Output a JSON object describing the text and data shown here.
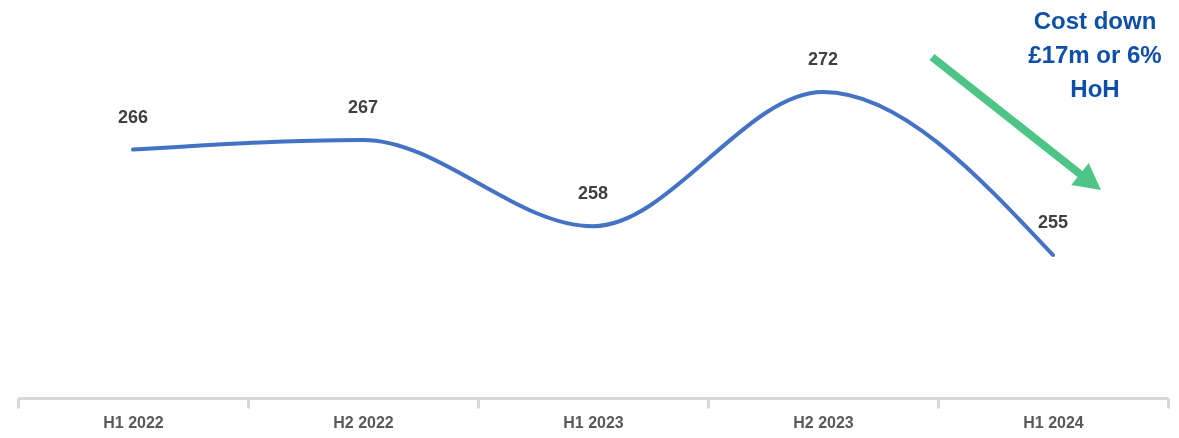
{
  "chart_data": {
    "type": "line",
    "categories": [
      "H1 2022",
      "H2 2022",
      "H1 2023",
      "H2 2023",
      "H1 2024"
    ],
    "series": [
      {
        "color": "#4472c4",
        "values": [
          266,
          267,
          258,
          272,
          255
        ]
      }
    ],
    "tick_labels": "x",
    "data_labels": true,
    "annotations": [
      "Cost down £17m or 6% HoH"
    ]
  }
}
